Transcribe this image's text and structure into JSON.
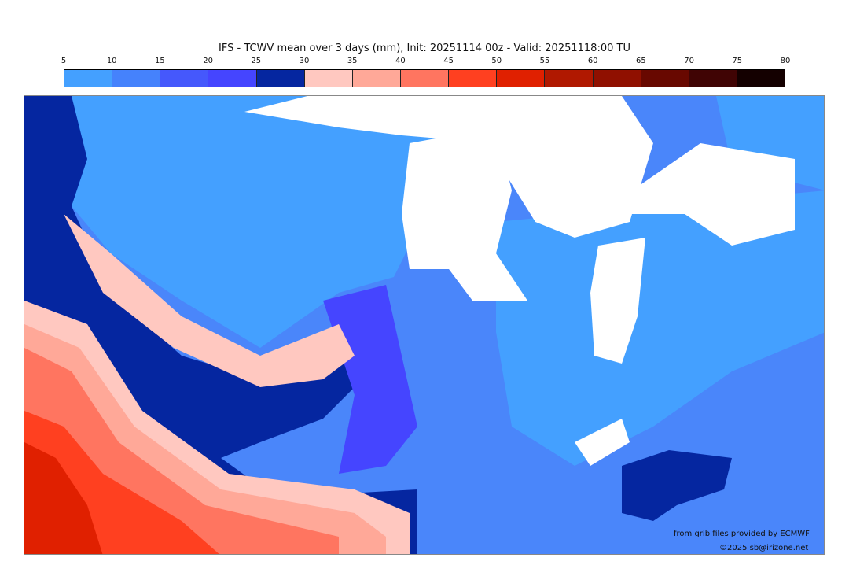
{
  "title": "IFS - TCWV mean over 3 days (mm), Init: 20251114 00z - Valid: 20251118:00 TU",
  "colorbar": {
    "ticks": [
      "5",
      "10",
      "15",
      "20",
      "25",
      "30",
      "35",
      "40",
      "45",
      "50",
      "55",
      "60",
      "65",
      "70",
      "75",
      "80"
    ],
    "colors": [
      "#44a0ff",
      "#4582fc",
      "#4558fc",
      "#4545ff",
      "#0526a0",
      "#ffc8c0",
      "#ffa898",
      "#ff7560",
      "#ff4020",
      "#e02000",
      "#b01800",
      "#901000",
      "#680800",
      "#400404",
      "#140000"
    ]
  },
  "credits": {
    "source": "from grib files provided by ECMWF",
    "copyright": "©2025 sb@irizone.net"
  }
}
